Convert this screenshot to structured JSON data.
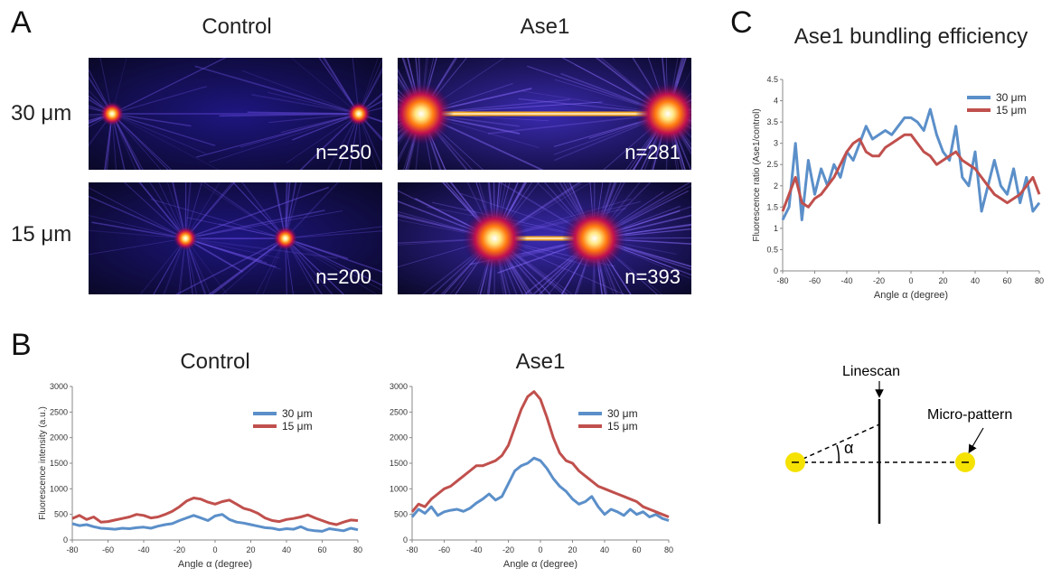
{
  "panel_a": {
    "letter": "A",
    "columns": [
      "Control",
      "Ase1"
    ],
    "rows": [
      "30 μm",
      "15 μm"
    ],
    "images": [
      {
        "n": "n=250",
        "spot_gap_um": 30,
        "bundle": "weak"
      },
      {
        "n": "n=281",
        "spot_gap_um": 30,
        "bundle": "strong"
      },
      {
        "n": "n=200",
        "spot_gap_um": 15,
        "bundle": "weak"
      },
      {
        "n": "n=393",
        "spot_gap_um": 15,
        "bundle": "strong"
      }
    ]
  },
  "panel_b": {
    "letter": "B"
  },
  "panel_c": {
    "letter": "C"
  },
  "colors": {
    "series_30": "#5b8fc9",
    "series_15": "#c0504d"
  },
  "schematic": {
    "linescan_label": "Linescan",
    "micropattern_label": "Micro-pattern",
    "angle_symbol": "α"
  },
  "chart_data": [
    {
      "type": "line",
      "title": "Control",
      "xlabel": "Angle α (degree)",
      "ylabel": "Fluorescence intensity (a.u.)",
      "xlim": [
        -80,
        80
      ],
      "ylim": [
        0,
        3000
      ],
      "xticks": [
        "-80",
        "-60",
        "-40",
        "-20",
        "0",
        "20",
        "40",
        "60",
        "80"
      ],
      "yticks": [
        "0",
        "500",
        "1000",
        "1500",
        "2000",
        "2500",
        "3000"
      ],
      "legend": "top-right",
      "series": [
        {
          "name": "30 μm",
          "x": [
            -80,
            -76,
            -72,
            -68,
            -64,
            -60,
            -56,
            -52,
            -48,
            -44,
            -40,
            -36,
            -32,
            -28,
            -24,
            -20,
            -16,
            -12,
            -8,
            -4,
            0,
            4,
            8,
            12,
            16,
            20,
            24,
            28,
            32,
            36,
            40,
            44,
            48,
            52,
            56,
            60,
            64,
            68,
            72,
            76,
            80
          ],
          "y": [
            320,
            280,
            300,
            260,
            230,
            220,
            210,
            230,
            220,
            240,
            250,
            230,
            270,
            300,
            320,
            380,
            430,
            480,
            430,
            380,
            470,
            500,
            400,
            350,
            330,
            300,
            270,
            240,
            230,
            200,
            220,
            210,
            260,
            200,
            180,
            170,
            220,
            200,
            180,
            230,
            200
          ]
        },
        {
          "name": "15 μm",
          "x": [
            -80,
            -76,
            -72,
            -68,
            -64,
            -60,
            -56,
            -52,
            -48,
            -44,
            -40,
            -36,
            -32,
            -28,
            -24,
            -20,
            -16,
            -12,
            -8,
            -4,
            0,
            4,
            8,
            12,
            16,
            20,
            24,
            28,
            32,
            36,
            40,
            44,
            48,
            52,
            56,
            60,
            64,
            68,
            72,
            76,
            80
          ],
          "y": [
            420,
            480,
            400,
            450,
            350,
            360,
            390,
            420,
            450,
            500,
            480,
            430,
            450,
            500,
            560,
            650,
            760,
            820,
            800,
            740,
            700,
            750,
            780,
            700,
            620,
            580,
            520,
            430,
            380,
            360,
            400,
            420,
            450,
            490,
            430,
            380,
            330,
            300,
            350,
            390,
            380
          ]
        }
      ]
    },
    {
      "type": "line",
      "title": "Ase1",
      "xlabel": "Angle α (degree)",
      "ylabel": "",
      "xlim": [
        -80,
        80
      ],
      "ylim": [
        0,
        3000
      ],
      "xticks": [
        "-80",
        "-60",
        "-40",
        "-20",
        "0",
        "20",
        "40",
        "60",
        "80"
      ],
      "yticks": [
        "0",
        "500",
        "1000",
        "1500",
        "2000",
        "2500",
        "3000"
      ],
      "legend": "top-right",
      "series": [
        {
          "name": "30 μm",
          "x": [
            -80,
            -76,
            -72,
            -68,
            -64,
            -60,
            -56,
            -52,
            -48,
            -44,
            -40,
            -36,
            -32,
            -28,
            -24,
            -20,
            -16,
            -12,
            -8,
            -4,
            0,
            4,
            8,
            12,
            16,
            20,
            24,
            28,
            32,
            36,
            40,
            44,
            48,
            52,
            56,
            60,
            64,
            68,
            72,
            76,
            80
          ],
          "y": [
            450,
            600,
            520,
            650,
            480,
            550,
            580,
            600,
            560,
            620,
            720,
            800,
            900,
            780,
            850,
            1100,
            1350,
            1450,
            1500,
            1600,
            1550,
            1400,
            1200,
            1050,
            950,
            800,
            700,
            750,
            850,
            650,
            500,
            600,
            550,
            480,
            600,
            500,
            550,
            450,
            500,
            420,
            380
          ]
        },
        {
          "name": "15 μm",
          "x": [
            -80,
            -76,
            -72,
            -68,
            -64,
            -60,
            -56,
            -52,
            -48,
            -44,
            -40,
            -36,
            -32,
            -28,
            -24,
            -20,
            -16,
            -12,
            -8,
            -4,
            0,
            4,
            8,
            12,
            16,
            20,
            24,
            28,
            32,
            36,
            40,
            44,
            48,
            52,
            56,
            60,
            64,
            68,
            72,
            76,
            80
          ],
          "y": [
            550,
            700,
            650,
            800,
            900,
            1000,
            1050,
            1150,
            1250,
            1350,
            1450,
            1450,
            1500,
            1550,
            1650,
            1850,
            2200,
            2550,
            2800,
            2900,
            2750,
            2400,
            2000,
            1700,
            1550,
            1500,
            1350,
            1250,
            1150,
            1050,
            1000,
            950,
            900,
            850,
            800,
            750,
            650,
            600,
            550,
            500,
            450
          ]
        }
      ]
    },
    {
      "type": "line",
      "title": "Ase1 bundling efficiency",
      "xlabel": "Angle α (degree)",
      "ylabel": "Fluorescence ratio (Ase1/control)",
      "xlim": [
        -80,
        80
      ],
      "ylim": [
        0,
        4.5
      ],
      "xticks": [
        "-80",
        "-60",
        "-40",
        "-20",
        "0",
        "20",
        "40",
        "60",
        "80"
      ],
      "yticks": [
        "0",
        "0.5",
        "1",
        "1.5",
        "2",
        "2.5",
        "3",
        "3.5",
        "4",
        "4.5"
      ],
      "legend": "top-right",
      "series": [
        {
          "name": "30 μm",
          "x": [
            -80,
            -76,
            -72,
            -68,
            -64,
            -60,
            -56,
            -52,
            -48,
            -44,
            -40,
            -36,
            -32,
            -28,
            -24,
            -20,
            -16,
            -12,
            -8,
            -4,
            0,
            4,
            8,
            12,
            16,
            20,
            24,
            28,
            32,
            36,
            40,
            44,
            48,
            52,
            56,
            60,
            64,
            68,
            72,
            76,
            80
          ],
          "y": [
            1.2,
            1.5,
            3.0,
            1.2,
            2.6,
            1.8,
            2.4,
            2.0,
            2.5,
            2.2,
            2.8,
            2.6,
            3.0,
            3.4,
            3.1,
            3.2,
            3.3,
            3.2,
            3.4,
            3.6,
            3.6,
            3.5,
            3.3,
            3.8,
            3.2,
            2.8,
            2.6,
            3.4,
            2.2,
            2.0,
            2.8,
            1.4,
            2.0,
            2.6,
            2.0,
            1.8,
            2.4,
            1.6,
            2.2,
            1.4,
            1.6
          ]
        },
        {
          "name": "15 μm",
          "x": [
            -80,
            -76,
            -72,
            -68,
            -64,
            -60,
            -56,
            -52,
            -48,
            -44,
            -40,
            -36,
            -32,
            -28,
            -24,
            -20,
            -16,
            -12,
            -8,
            -4,
            0,
            4,
            8,
            12,
            16,
            20,
            24,
            28,
            32,
            36,
            40,
            44,
            48,
            52,
            56,
            60,
            64,
            68,
            72,
            76,
            80
          ],
          "y": [
            1.4,
            1.8,
            2.2,
            1.6,
            1.5,
            1.7,
            1.8,
            2.0,
            2.2,
            2.5,
            2.8,
            3.0,
            3.1,
            2.8,
            2.7,
            2.7,
            2.9,
            3.0,
            3.1,
            3.2,
            3.2,
            3.0,
            2.8,
            2.7,
            2.5,
            2.6,
            2.7,
            2.8,
            2.6,
            2.5,
            2.4,
            2.2,
            2.0,
            1.8,
            1.7,
            1.6,
            1.7,
            1.8,
            2.0,
            2.2,
            1.8
          ]
        }
      ]
    }
  ]
}
